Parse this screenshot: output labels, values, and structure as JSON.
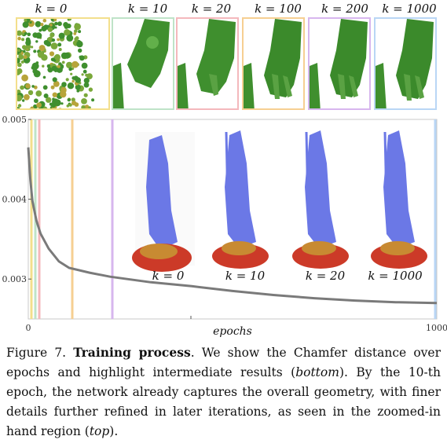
{
  "top_labels": [
    "k = 0",
    "k = 10",
    "k = 20",
    "k = 100",
    "k = 200",
    "k = 1000"
  ],
  "frame_colors": [
    "#f3df8c",
    "#bfe3c8",
    "#f4b8bc",
    "#f6cf92",
    "#d7b6ee",
    "#b9d6f5"
  ],
  "statue_labels": [
    "k = 0",
    "k = 10",
    "k = 20",
    "k = 1000"
  ],
  "chart_data": {
    "type": "line",
    "xlabel": "epochs",
    "ylabel": "",
    "xlim": [
      0,
      1000
    ],
    "ylim": [
      0.0025,
      0.005
    ],
    "x_ticks": [
      "0",
      "1000"
    ],
    "y_ticks": [
      "0.005",
      "0.004",
      "0.003"
    ],
    "highlighted_epochs": [
      0,
      10,
      20,
      100,
      200,
      1000
    ],
    "series": [
      {
        "x": [
          0,
          5,
          10,
          20,
          30,
          50,
          75,
          100,
          150,
          200,
          300,
          400,
          500,
          600,
          700,
          800,
          900,
          1000
        ],
        "values": [
          0.00465,
          0.00425,
          0.00398,
          0.00373,
          0.00357,
          0.00338,
          0.00322,
          0.00314,
          0.00308,
          0.00303,
          0.00296,
          0.00291,
          0.00285,
          0.0028,
          0.00276,
          0.00273,
          0.00271,
          0.0027
        ]
      }
    ]
  },
  "caption": {
    "figure_label": "Figure 7.",
    "title": "Training process",
    "text1": ". We show the Chamfer distance over epochs and highlight intermediate results (",
    "em1": "bottom",
    "text2": "). By the 10-th epoch, the network already captures the overall geometry, with finer details further refined in later iterations, as seen in the zoomed-in hand region (",
    "em2": "top",
    "text3": ")."
  }
}
